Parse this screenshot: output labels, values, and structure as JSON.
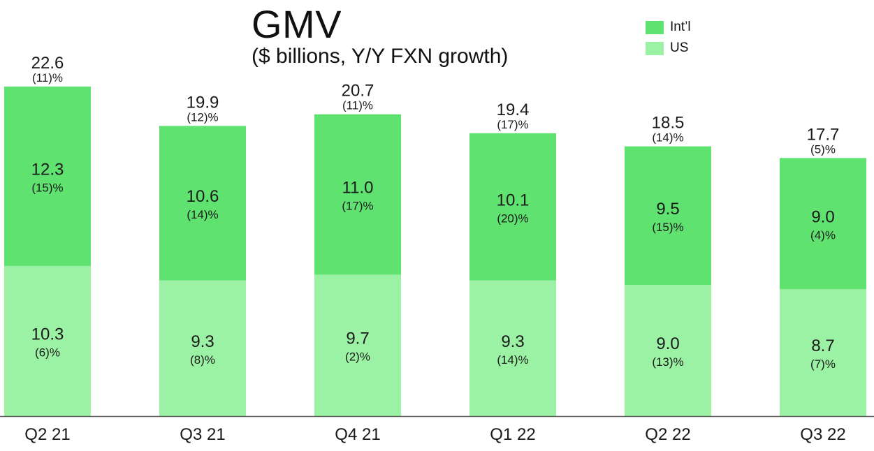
{
  "chart_data": {
    "type": "bar",
    "stacked": true,
    "title": "GMV",
    "subtitle": "($ billions, Y/Y FXN growth)",
    "categories": [
      "Q2 21",
      "Q3 21",
      "Q4 21",
      "Q1 22",
      "Q2 22",
      "Q3 22"
    ],
    "series": [
      {
        "name": "US",
        "color": "#9cf2a4",
        "values": [
          10.3,
          9.3,
          9.7,
          9.3,
          9.0,
          8.7
        ],
        "growth_labels": [
          "(6)%",
          "(8)%",
          "(2)%",
          "(14)%",
          "(13)%",
          "(7)%"
        ]
      },
      {
        "name": "Int’l",
        "color": "#5fe26f",
        "values": [
          12.3,
          10.6,
          11.0,
          10.1,
          9.5,
          9.0
        ],
        "growth_labels": [
          "(15)%",
          "(14)%",
          "(17)%",
          "(20)%",
          "(15)%",
          "(4)%"
        ]
      }
    ],
    "totals": [
      22.6,
      19.9,
      20.7,
      19.4,
      18.5,
      17.7
    ],
    "total_growth_labels": [
      "(11)%",
      "(12)%",
      "(11)%",
      "(17)%",
      "(14)%",
      "(5)%"
    ],
    "legend": [
      {
        "label": "Int’l",
        "color": "#5fe26f"
      },
      {
        "label": "US",
        "color": "#9cf2a4"
      }
    ],
    "legend_position": "top-right",
    "ylim": [
      0,
      22.6
    ],
    "xlabel": "",
    "ylabel": "",
    "grid": false
  }
}
